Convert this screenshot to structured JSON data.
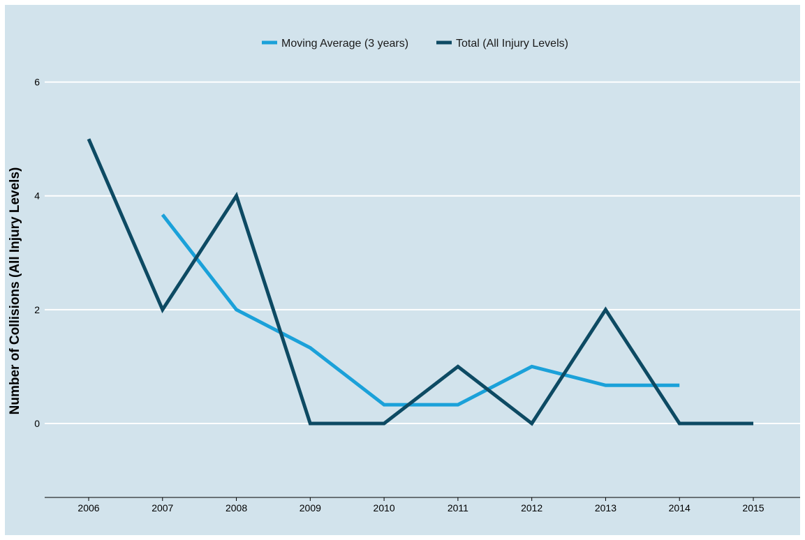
{
  "chart_data": {
    "type": "line",
    "title": "",
    "xlabel": "",
    "ylabel": "Number of Collisions (All Injury Levels)",
    "x": [
      2006,
      2007,
      2008,
      2009,
      2010,
      2011,
      2012,
      2013,
      2014,
      2015
    ],
    "xticks": [
      "2006",
      "2007",
      "2008",
      "2009",
      "2010",
      "2011",
      "2012",
      "2013",
      "2014",
      "2015"
    ],
    "yticks": [
      "0",
      "2",
      "4",
      "6"
    ],
    "ylim": [
      -1.3,
      7.05
    ],
    "grid": "horizontal",
    "legend_position": "top-center",
    "series": [
      {
        "name": "Moving Average (3 years)",
        "color": "#1ba1d9",
        "values": [
          null,
          3.67,
          2.0,
          1.33,
          0.33,
          0.33,
          1.0,
          0.67,
          0.67,
          null
        ]
      },
      {
        "name": "Total (All Injury Levels)",
        "color": "#0d4a63",
        "values": [
          5,
          2,
          4,
          0,
          0,
          1,
          0,
          2,
          0,
          0
        ]
      }
    ]
  }
}
